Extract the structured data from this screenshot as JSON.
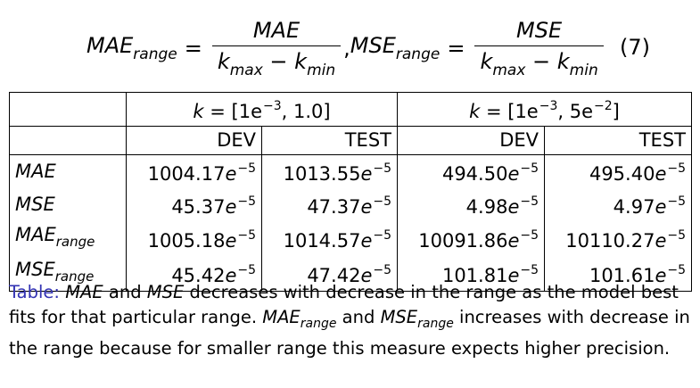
{
  "equation": {
    "lhs1": "MAE",
    "lhs1_sub": "range",
    "num1": "MAE",
    "den_k": "k",
    "den_max": "max",
    "den_min": "min",
    "lhs2": "MSE",
    "lhs2_sub": "range",
    "num2": "MSE",
    "number": "(7)"
  },
  "table": {
    "groups": [
      {
        "k": "k",
        "range": "= [1e",
        "exp": "−3",
        "tail": ", 1.0]"
      },
      {
        "k": "k",
        "range": "= [1e",
        "exp": "−3",
        "tail": ", 5e",
        "exp2": "−2",
        "tail2": "]"
      }
    ],
    "subheaders": [
      "DEV",
      "TEST",
      "DEV",
      "TEST"
    ],
    "rows": [
      {
        "label": "MAE",
        "label_sub": "",
        "values": [
          "1004.17",
          "1013.55",
          "494.50",
          "495.40"
        ],
        "exp": "e",
        "sup": "−5"
      },
      {
        "label": "MSE",
        "label_sub": "",
        "values": [
          "45.37",
          "47.37",
          "4.98",
          "4.97"
        ],
        "exp": "e",
        "sup": "−5"
      },
      {
        "label": "MAE",
        "label_sub": "range",
        "values": [
          "1005.18",
          "1014.57",
          "10091.86",
          "10110.27"
        ],
        "exp": "e",
        "sup": "−5"
      },
      {
        "label": "MSE",
        "label_sub": "range",
        "values": [
          "45.42",
          "47.42",
          "101.81",
          "101.61"
        ],
        "exp": "e",
        "sup": "−5"
      }
    ]
  },
  "caption": {
    "label": "Table:",
    "t1": "MAE",
    "t2": " and ",
    "t3": "MSE",
    "t4": " decreases with decrease in the range as the model best fits for that particular range. ",
    "t5": "MAE",
    "t5_sub": "range",
    "t6": " and ",
    "t7": "MSE",
    "t7_sub": "range",
    "t8": " increases with decrease in the range because for smaller range this measure expects higher precision."
  }
}
